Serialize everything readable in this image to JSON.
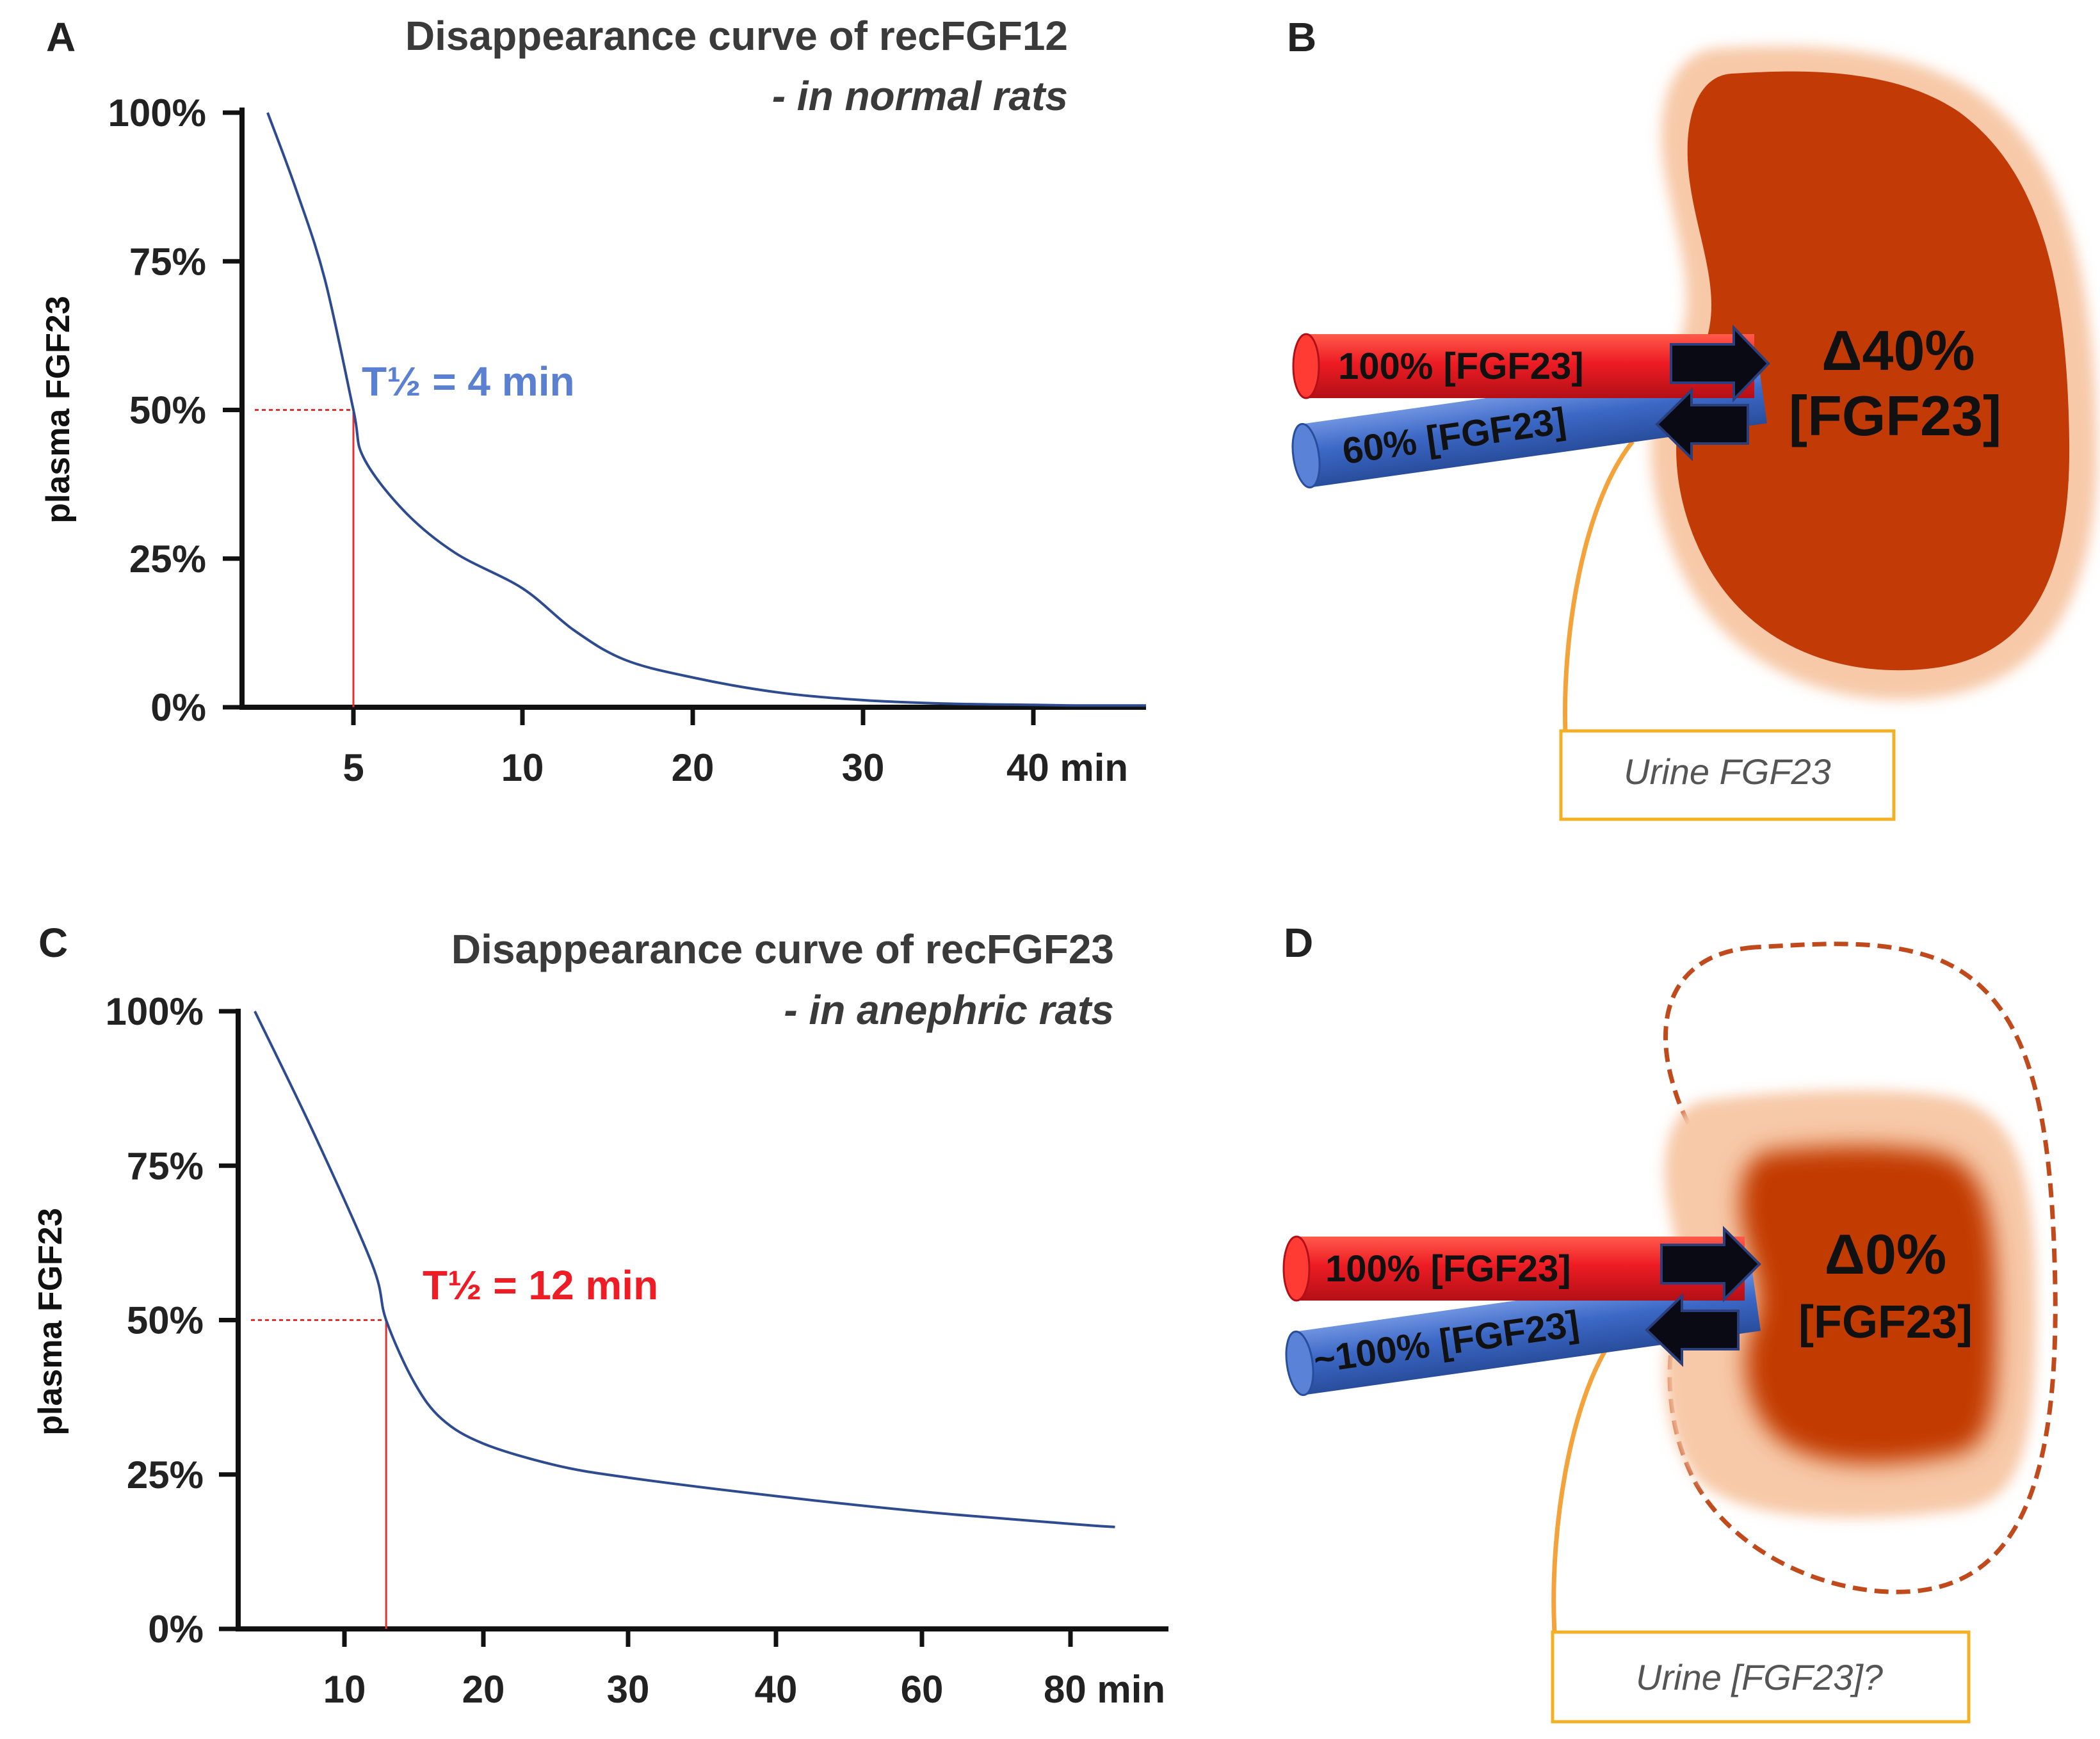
{
  "panel_labels": {
    "a": "A",
    "b": "B",
    "c": "C",
    "d": "D"
  },
  "colors": {
    "curve": "#2f4b8f",
    "halflife_a": "#5b7fd1",
    "halflife_c": "#ee1c24",
    "guide": "#e53030",
    "kidney_dark": "#c23a05",
    "kidney_light": "#f7c9a8",
    "artery": "#ee1c24",
    "vein": "#3c68c6",
    "ureter": "#f3a33a",
    "urine_box": "#f2b024"
  },
  "chart_data": [
    {
      "id": "A",
      "type": "line",
      "title": "Disappearance curve of recFGF12",
      "subtitle": "- in normal rats",
      "ylabel": "plasma FGF23",
      "ylim": [
        0,
        100
      ],
      "yticks": [
        0,
        25,
        50,
        75,
        100
      ],
      "ytick_labels": [
        "0%",
        "25%",
        "50%",
        "75%",
        "100%"
      ],
      "x_positions": [
        2,
        5,
        7,
        10,
        14,
        20,
        25,
        30,
        40,
        50
      ],
      "x_tick_labels": [
        {
          "pos": 5,
          "label": "5"
        },
        {
          "pos": 10,
          "label": "10"
        },
        {
          "pos": 20,
          "label": "20"
        },
        {
          "pos": 30,
          "label": "30"
        },
        {
          "pos": 40,
          "label": "40 min"
        }
      ],
      "xlim": [
        -1,
        53.5
      ],
      "series": [
        {
          "name": "plasma FGF23",
          "points": [
            [
              2,
              100
            ],
            [
              3,
              87
            ],
            [
              4,
              72
            ],
            [
              5,
              50
            ],
            [
              5.3,
              42
            ],
            [
              6.5,
              33
            ],
            [
              8,
              26
            ],
            [
              10,
              20
            ],
            [
              13,
              13
            ],
            [
              16,
              8
            ],
            [
              20,
              5
            ],
            [
              25,
              2.5
            ],
            [
              30,
              1.2
            ],
            [
              35,
              0.6
            ],
            [
              40,
              0.4
            ],
            [
              45,
              0.3
            ],
            [
              53.5,
              0.3
            ]
          ]
        }
      ],
      "halflife": {
        "label": "T½ = 4 min",
        "x": 5,
        "y": 50
      }
    },
    {
      "id": "C",
      "type": "line",
      "title": "Disappearance curve of recFGF23",
      "subtitle": "- in anephric rats",
      "ylabel": "plasma FGF23",
      "ylim": [
        0,
        100
      ],
      "yticks": [
        0,
        25,
        50,
        75,
        100
      ],
      "ytick_labels": [
        "0%",
        "25%",
        "50%",
        "75%",
        "100%"
      ],
      "x_positions": [
        3,
        10,
        20,
        30,
        40,
        60,
        80,
        90
      ],
      "x_tick_labels": [
        {
          "pos": 10,
          "label": "10"
        },
        {
          "pos": 20,
          "label": "20"
        },
        {
          "pos": 30,
          "label": "30"
        },
        {
          "pos": 40,
          "label": "40"
        },
        {
          "pos": 60,
          "label": "60"
        },
        {
          "pos": 80,
          "label": "80 min"
        }
      ],
      "xlim": [
        2,
        91
      ],
      "series": [
        {
          "name": "plasma FGF23",
          "points": [
            [
              4,
              100
            ],
            [
              8,
              80
            ],
            [
              12,
              59
            ],
            [
              13,
              50
            ],
            [
              15,
              40
            ],
            [
              17,
              34
            ],
            [
              20,
              30
            ],
            [
              25,
              26.5
            ],
            [
              30,
              24.5
            ],
            [
              40,
              21.5
            ],
            [
              60,
              19
            ],
            [
              80,
              17
            ],
            [
              85,
              16.5
            ]
          ]
        }
      ],
      "halflife": {
        "label": "T½ = 12 min",
        "x": 13,
        "y": 50
      }
    }
  ],
  "diagram_b": {
    "artery_label": "100%  [FGF23]",
    "vein_label": "60% [FGF23]",
    "delta": "Δ40%",
    "delta_sub": "[FGF23]",
    "urine": "Urine FGF23"
  },
  "diagram_d": {
    "artery_label": "100%  [FGF23]",
    "vein_label": "~100% [FGF23]",
    "delta": "Δ0%",
    "delta_sub": "[FGF23]",
    "urine": "Urine [FGF23]?"
  }
}
